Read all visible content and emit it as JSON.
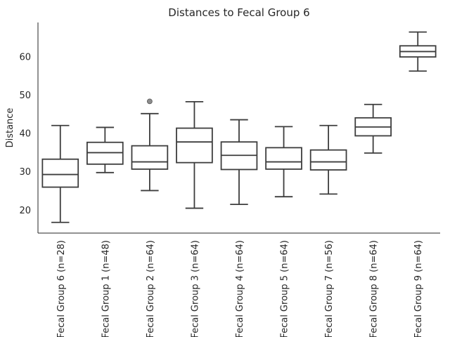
{
  "chart_data": {
    "type": "box",
    "title": "Distances to Fecal Group 6",
    "xlabel": "",
    "ylabel": "Distance",
    "ylim": [
      14,
      69
    ],
    "yticks": [
      20,
      30,
      40,
      50,
      60
    ],
    "grid": false,
    "categories": [
      "Fecal Group 6 (n=28)",
      "Fecal Group 1 (n=48)",
      "Fecal Group 2 (n=64)",
      "Fecal Group 3 (n=64)",
      "Fecal Group 4 (n=64)",
      "Fecal Group 5 (n=64)",
      "Fecal Group 7 (n=56)",
      "Fecal Group 8 (n=64)",
      "Fecal Group 9 (n=64)"
    ],
    "boxes": [
      {
        "whislo": 16.8,
        "q1": 26.0,
        "med": 29.3,
        "q3": 33.3,
        "whishi": 42.1,
        "fliers": []
      },
      {
        "whislo": 29.8,
        "q1": 32.0,
        "med": 35.0,
        "q3": 37.7,
        "whishi": 41.6,
        "fliers": []
      },
      {
        "whislo": 25.1,
        "q1": 30.7,
        "med": 32.6,
        "q3": 36.8,
        "whishi": 45.2,
        "fliers": [
          48.4
        ]
      },
      {
        "whislo": 20.5,
        "q1": 32.4,
        "med": 37.8,
        "q3": 41.4,
        "whishi": 48.3,
        "fliers": []
      },
      {
        "whislo": 21.5,
        "q1": 30.6,
        "med": 34.3,
        "q3": 37.8,
        "whishi": 43.6,
        "fliers": []
      },
      {
        "whislo": 23.5,
        "q1": 30.7,
        "med": 32.6,
        "q3": 36.3,
        "whishi": 41.8,
        "fliers": []
      },
      {
        "whislo": 24.2,
        "q1": 30.5,
        "med": 32.6,
        "q3": 35.7,
        "whishi": 42.1,
        "fliers": []
      },
      {
        "whislo": 34.9,
        "q1": 39.4,
        "med": 41.7,
        "q3": 44.1,
        "whishi": 47.6,
        "fliers": []
      },
      {
        "whislo": 56.3,
        "q1": 60.0,
        "med": 61.4,
        "q3": 62.9,
        "whishi": 66.5,
        "fliers": []
      }
    ]
  }
}
